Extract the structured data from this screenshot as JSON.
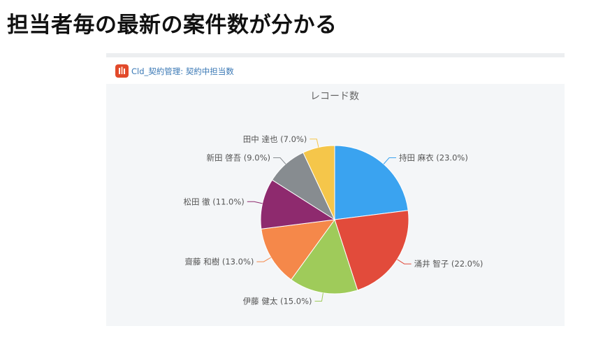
{
  "slide": {
    "title": "担当者毎の最新の案件数が分かる"
  },
  "panel": {
    "app_name": "Cld_契約管理:",
    "report_name": "契約中担当数",
    "header_text": "Cld_契約管理: 契約中担当数",
    "app_icon": "app-logo-icon"
  },
  "chart_data": {
    "type": "pie",
    "title": "レコード数",
    "slices": [
      {
        "label": "持田 麻衣",
        "value": 23.0,
        "color": "#3aa3f0"
      },
      {
        "label": "涌井 智子",
        "value": 22.0,
        "color": "#e24b3b"
      },
      {
        "label": "伊藤 健太",
        "value": 15.0,
        "color": "#9fcb5a"
      },
      {
        "label": "齋藤 和樹",
        "value": 13.0,
        "color": "#f5884a"
      },
      {
        "label": "松田 徹",
        "value": 11.0,
        "color": "#8e2a6e"
      },
      {
        "label": "新田 啓吾",
        "value": 9.0,
        "color": "#878c90"
      },
      {
        "label": "田中 達也",
        "value": 7.0,
        "color": "#f5c64a"
      }
    ],
    "data_labels": [
      "持田 麻衣 (23.0%)",
      "涌井 智子 (22.0%)",
      "伊藤 健太 (15.0%)",
      "齋藤 和樹 (13.0%)",
      "松田 徹 (11.0%)",
      "新田 啓吾 (9.0%)",
      "田中 達也 (7.0%)"
    ],
    "legend": "none",
    "grid": false
  }
}
